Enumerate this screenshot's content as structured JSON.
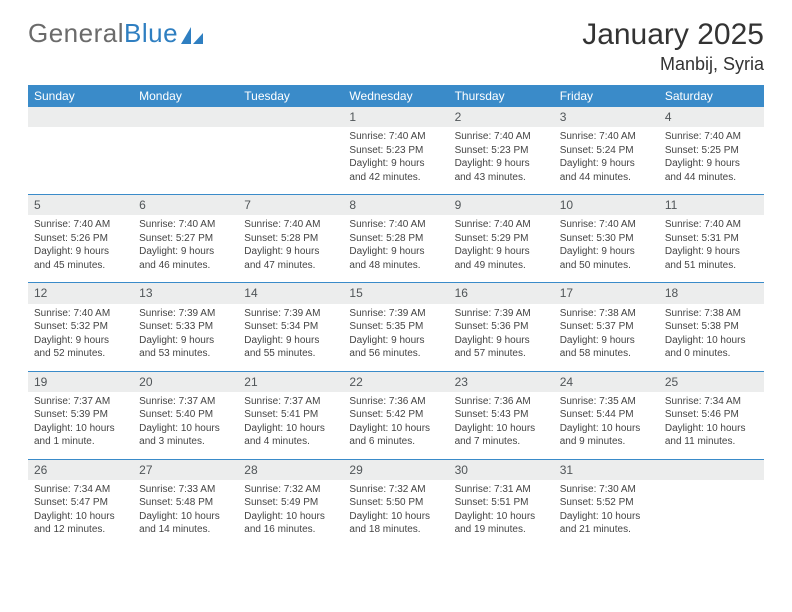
{
  "brand": {
    "part1": "General",
    "part2": "Blue"
  },
  "title": "January 2025",
  "location": "Manbij, Syria",
  "colors": {
    "header_bg": "#3a8bc9",
    "header_text": "#ffffff",
    "daynum_bg": "#eceded",
    "daynum_text": "#505558",
    "body_text": "#444444",
    "rule": "#3a8bc9",
    "logo_gray": "#6b6b6b",
    "logo_blue": "#2f7fc1",
    "page_bg": "#ffffff"
  },
  "weekdays": [
    "Sunday",
    "Monday",
    "Tuesday",
    "Wednesday",
    "Thursday",
    "Friday",
    "Saturday"
  ],
  "weeks": [
    [
      null,
      null,
      null,
      {
        "n": "1",
        "sr": "Sunrise: 7:40 AM",
        "ss": "Sunset: 5:23 PM",
        "dl1": "Daylight: 9 hours",
        "dl2": "and 42 minutes."
      },
      {
        "n": "2",
        "sr": "Sunrise: 7:40 AM",
        "ss": "Sunset: 5:23 PM",
        "dl1": "Daylight: 9 hours",
        "dl2": "and 43 minutes."
      },
      {
        "n": "3",
        "sr": "Sunrise: 7:40 AM",
        "ss": "Sunset: 5:24 PM",
        "dl1": "Daylight: 9 hours",
        "dl2": "and 44 minutes."
      },
      {
        "n": "4",
        "sr": "Sunrise: 7:40 AM",
        "ss": "Sunset: 5:25 PM",
        "dl1": "Daylight: 9 hours",
        "dl2": "and 44 minutes."
      }
    ],
    [
      {
        "n": "5",
        "sr": "Sunrise: 7:40 AM",
        "ss": "Sunset: 5:26 PM",
        "dl1": "Daylight: 9 hours",
        "dl2": "and 45 minutes."
      },
      {
        "n": "6",
        "sr": "Sunrise: 7:40 AM",
        "ss": "Sunset: 5:27 PM",
        "dl1": "Daylight: 9 hours",
        "dl2": "and 46 minutes."
      },
      {
        "n": "7",
        "sr": "Sunrise: 7:40 AM",
        "ss": "Sunset: 5:28 PM",
        "dl1": "Daylight: 9 hours",
        "dl2": "and 47 minutes."
      },
      {
        "n": "8",
        "sr": "Sunrise: 7:40 AM",
        "ss": "Sunset: 5:28 PM",
        "dl1": "Daylight: 9 hours",
        "dl2": "and 48 minutes."
      },
      {
        "n": "9",
        "sr": "Sunrise: 7:40 AM",
        "ss": "Sunset: 5:29 PM",
        "dl1": "Daylight: 9 hours",
        "dl2": "and 49 minutes."
      },
      {
        "n": "10",
        "sr": "Sunrise: 7:40 AM",
        "ss": "Sunset: 5:30 PM",
        "dl1": "Daylight: 9 hours",
        "dl2": "and 50 minutes."
      },
      {
        "n": "11",
        "sr": "Sunrise: 7:40 AM",
        "ss": "Sunset: 5:31 PM",
        "dl1": "Daylight: 9 hours",
        "dl2": "and 51 minutes."
      }
    ],
    [
      {
        "n": "12",
        "sr": "Sunrise: 7:40 AM",
        "ss": "Sunset: 5:32 PM",
        "dl1": "Daylight: 9 hours",
        "dl2": "and 52 minutes."
      },
      {
        "n": "13",
        "sr": "Sunrise: 7:39 AM",
        "ss": "Sunset: 5:33 PM",
        "dl1": "Daylight: 9 hours",
        "dl2": "and 53 minutes."
      },
      {
        "n": "14",
        "sr": "Sunrise: 7:39 AM",
        "ss": "Sunset: 5:34 PM",
        "dl1": "Daylight: 9 hours",
        "dl2": "and 55 minutes."
      },
      {
        "n": "15",
        "sr": "Sunrise: 7:39 AM",
        "ss": "Sunset: 5:35 PM",
        "dl1": "Daylight: 9 hours",
        "dl2": "and 56 minutes."
      },
      {
        "n": "16",
        "sr": "Sunrise: 7:39 AM",
        "ss": "Sunset: 5:36 PM",
        "dl1": "Daylight: 9 hours",
        "dl2": "and 57 minutes."
      },
      {
        "n": "17",
        "sr": "Sunrise: 7:38 AM",
        "ss": "Sunset: 5:37 PM",
        "dl1": "Daylight: 9 hours",
        "dl2": "and 58 minutes."
      },
      {
        "n": "18",
        "sr": "Sunrise: 7:38 AM",
        "ss": "Sunset: 5:38 PM",
        "dl1": "Daylight: 10 hours",
        "dl2": "and 0 minutes."
      }
    ],
    [
      {
        "n": "19",
        "sr": "Sunrise: 7:37 AM",
        "ss": "Sunset: 5:39 PM",
        "dl1": "Daylight: 10 hours",
        "dl2": "and 1 minute."
      },
      {
        "n": "20",
        "sr": "Sunrise: 7:37 AM",
        "ss": "Sunset: 5:40 PM",
        "dl1": "Daylight: 10 hours",
        "dl2": "and 3 minutes."
      },
      {
        "n": "21",
        "sr": "Sunrise: 7:37 AM",
        "ss": "Sunset: 5:41 PM",
        "dl1": "Daylight: 10 hours",
        "dl2": "and 4 minutes."
      },
      {
        "n": "22",
        "sr": "Sunrise: 7:36 AM",
        "ss": "Sunset: 5:42 PM",
        "dl1": "Daylight: 10 hours",
        "dl2": "and 6 minutes."
      },
      {
        "n": "23",
        "sr": "Sunrise: 7:36 AM",
        "ss": "Sunset: 5:43 PM",
        "dl1": "Daylight: 10 hours",
        "dl2": "and 7 minutes."
      },
      {
        "n": "24",
        "sr": "Sunrise: 7:35 AM",
        "ss": "Sunset: 5:44 PM",
        "dl1": "Daylight: 10 hours",
        "dl2": "and 9 minutes."
      },
      {
        "n": "25",
        "sr": "Sunrise: 7:34 AM",
        "ss": "Sunset: 5:46 PM",
        "dl1": "Daylight: 10 hours",
        "dl2": "and 11 minutes."
      }
    ],
    [
      {
        "n": "26",
        "sr": "Sunrise: 7:34 AM",
        "ss": "Sunset: 5:47 PM",
        "dl1": "Daylight: 10 hours",
        "dl2": "and 12 minutes."
      },
      {
        "n": "27",
        "sr": "Sunrise: 7:33 AM",
        "ss": "Sunset: 5:48 PM",
        "dl1": "Daylight: 10 hours",
        "dl2": "and 14 minutes."
      },
      {
        "n": "28",
        "sr": "Sunrise: 7:32 AM",
        "ss": "Sunset: 5:49 PM",
        "dl1": "Daylight: 10 hours",
        "dl2": "and 16 minutes."
      },
      {
        "n": "29",
        "sr": "Sunrise: 7:32 AM",
        "ss": "Sunset: 5:50 PM",
        "dl1": "Daylight: 10 hours",
        "dl2": "and 18 minutes."
      },
      {
        "n": "30",
        "sr": "Sunrise: 7:31 AM",
        "ss": "Sunset: 5:51 PM",
        "dl1": "Daylight: 10 hours",
        "dl2": "and 19 minutes."
      },
      {
        "n": "31",
        "sr": "Sunrise: 7:30 AM",
        "ss": "Sunset: 5:52 PM",
        "dl1": "Daylight: 10 hours",
        "dl2": "and 21 minutes."
      },
      null
    ]
  ]
}
